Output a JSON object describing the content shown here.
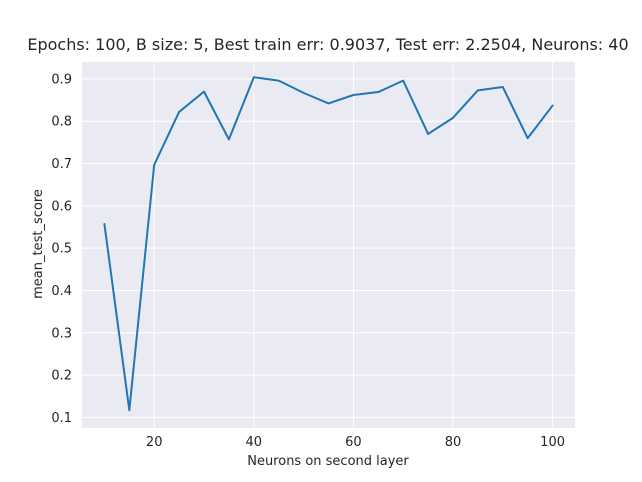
{
  "chart_data": {
    "type": "line",
    "title": "Epochs: 100, B size: 5, Best train err: 0.9037, Test err: 2.2504, Neurons: 40",
    "xlabel": "Neurons on second layer",
    "ylabel": "mean_test_score",
    "xlim": [
      5.5,
      104.5
    ],
    "ylim": [
      0.075,
      0.94
    ],
    "xticks": [
      20,
      40,
      60,
      80,
      100
    ],
    "xtick_labels": [
      "20",
      "40",
      "60",
      "80",
      "100"
    ],
    "yticks": [
      0.1,
      0.2,
      0.3,
      0.4,
      0.5,
      0.6,
      0.7,
      0.8,
      0.9
    ],
    "ytick_labels": [
      "0.1",
      "0.2",
      "0.3",
      "0.4",
      "0.5",
      "0.6",
      "0.7",
      "0.8",
      "0.9"
    ],
    "grid": true,
    "series": [
      {
        "name": "mean_test_score",
        "color": "#1f77b4",
        "x": [
          10,
          15,
          20,
          25,
          30,
          35,
          40,
          45,
          50,
          55,
          60,
          65,
          70,
          75,
          80,
          85,
          90,
          95,
          100
        ],
        "y": [
          0.557,
          0.117,
          0.697,
          0.822,
          0.87,
          0.757,
          0.904,
          0.896,
          0.867,
          0.842,
          0.862,
          0.869,
          0.896,
          0.77,
          0.808,
          0.873,
          0.881,
          0.76,
          0.837
        ]
      }
    ],
    "colors": {
      "background": "#eaeaf2",
      "grid": "#ffffff",
      "text": "#262626"
    }
  }
}
